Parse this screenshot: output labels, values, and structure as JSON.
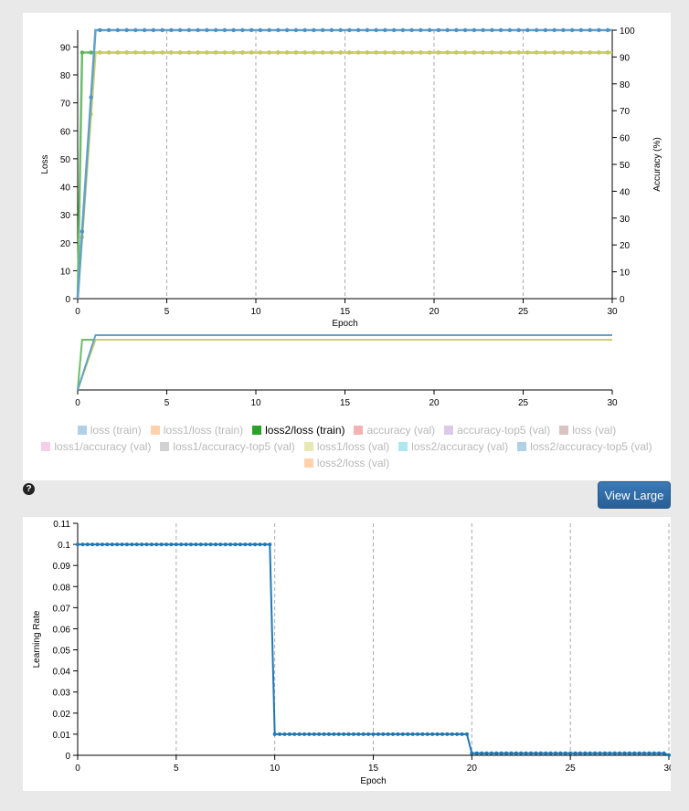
{
  "chart_data": [
    {
      "type": "line",
      "xlabel": "Epoch",
      "ylabel": "Loss",
      "y2label": "Accuracy (%)",
      "xlim": [
        0,
        30
      ],
      "ylim": [
        0,
        96
      ],
      "y2lim": [
        0,
        100
      ],
      "xticks": [
        0,
        5,
        10,
        15,
        20,
        25,
        30
      ],
      "yticks": [
        0,
        10,
        20,
        30,
        40,
        50,
        60,
        70,
        80,
        90
      ],
      "y2ticks": [
        0,
        10,
        20,
        30,
        40,
        50,
        60,
        70,
        80,
        90,
        100
      ],
      "grid": "vertical",
      "legend_position": "bottom",
      "series": [
        {
          "name": "loss (train)",
          "color": "#1f77b4",
          "visible": false
        },
        {
          "name": "loss1/loss (train)",
          "color": "#ff7f0e",
          "visible": false
        },
        {
          "name": "loss2/loss (train)",
          "color": "#2ca02c",
          "visible": true,
          "axis": "left",
          "points": [
            [
              0,
              0
            ],
            [
              0.25,
              88
            ],
            [
              30,
              88
            ]
          ]
        },
        {
          "name": "accuracy (val)",
          "color": "#d62728",
          "visible": false
        },
        {
          "name": "accuracy-top5 (val)",
          "color": "#9467bd",
          "visible": false
        },
        {
          "name": "loss (val)",
          "color": "#8c564b",
          "visible": false
        },
        {
          "name": "loss1/accuracy (val)",
          "color": "#e377c2",
          "visible": false
        },
        {
          "name": "loss1/accuracy-top5 (val)",
          "color": "#7f7f7f",
          "visible": false
        },
        {
          "name": "loss1/loss (val)",
          "color": "#bcbd22",
          "visible": true,
          "axis": "left",
          "points": [
            [
              0,
              0
            ],
            [
              1,
              88
            ],
            [
              30,
              88
            ]
          ]
        },
        {
          "name": "loss2/accuracy (val)",
          "color": "#17becf",
          "visible": false
        },
        {
          "name": "loss2/accuracy-top5 (val)",
          "color": "#1f77b4",
          "visible": true,
          "axis": "right",
          "points": [
            [
              0,
              0
            ],
            [
              1,
              100
            ],
            [
              30,
              100
            ]
          ]
        },
        {
          "name": "loss2/loss (val)",
          "color": "#ff7f0e",
          "visible": false
        }
      ]
    },
    {
      "type": "line",
      "xlabel": "Epoch",
      "ylabel": "Learning Rate",
      "xlim": [
        0,
        30
      ],
      "ylim": [
        0,
        0.11
      ],
      "xticks": [
        0,
        5,
        10,
        15,
        20,
        25,
        30
      ],
      "yticks": [
        0,
        0.01,
        0.02,
        0.03,
        0.04,
        0.05,
        0.06,
        0.07,
        0.08,
        0.09,
        0.1,
        0.11
      ],
      "grid": "vertical",
      "series": [
        {
          "color": "#1f77b4",
          "points": [
            [
              0,
              0.1
            ],
            [
              9.75,
              0.1
            ],
            [
              10,
              0.01
            ],
            [
              19.75,
              0.01
            ],
            [
              20,
              0.001
            ],
            [
              29.75,
              0.001
            ],
            [
              30,
              0.0001
            ]
          ]
        }
      ]
    }
  ],
  "buttons": {
    "view_large": "View Large",
    "help": "?"
  }
}
